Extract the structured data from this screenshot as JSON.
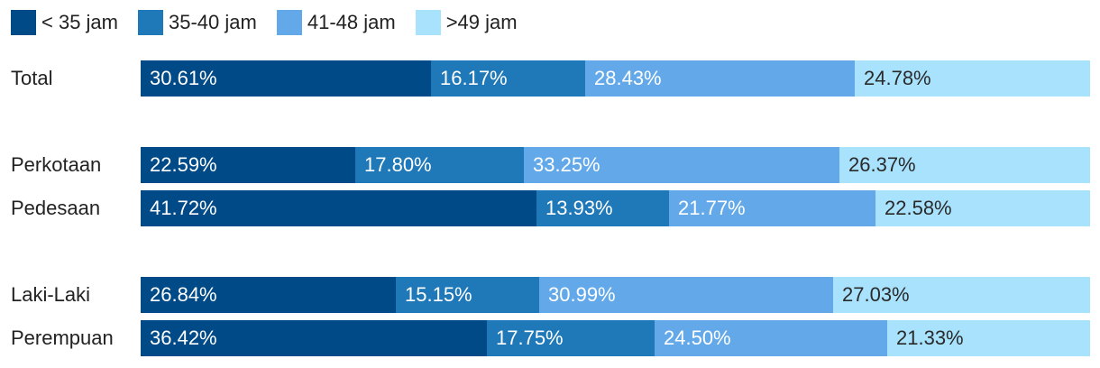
{
  "chart_data": {
    "type": "bar",
    "orientation": "horizontal",
    "stacked": true,
    "normalized_percent": true,
    "categories": [
      "Total",
      "Perkotaan",
      "Pedesaan",
      "Laki-Laki",
      "Perempuan"
    ],
    "groups": [
      [
        "Total"
      ],
      [
        "Perkotaan",
        "Pedesaan"
      ],
      [
        "Laki-Laki",
        "Perempuan"
      ]
    ],
    "series": [
      {
        "name": "< 35 jam",
        "color": "#004a87",
        "label_color": "#ffffff",
        "values": [
          30.61,
          22.59,
          41.72,
          26.84,
          36.42
        ],
        "labels": [
          "30.61%",
          "22.59%",
          "41.72%",
          "26.84%",
          "36.42%"
        ]
      },
      {
        "name": "35-40 jam",
        "color": "#1f78b8",
        "label_color": "#ffffff",
        "values": [
          16.17,
          17.8,
          13.93,
          15.15,
          17.75
        ],
        "labels": [
          "16.17%",
          "17.80%",
          "13.93%",
          "15.15%",
          "17.75%"
        ]
      },
      {
        "name": "41-48 jam",
        "color": "#63a9ea",
        "label_color": "#ffffff",
        "values": [
          28.43,
          33.25,
          21.77,
          30.99,
          24.5
        ],
        "labels": [
          "28.43%",
          "33.25%",
          "21.77%",
          "30.99%",
          "24.50%"
        ]
      },
      {
        "name": ">49 jam",
        "color": "#a8e2fd",
        "label_color": "#2a2a2a",
        "values": [
          24.78,
          26.37,
          22.58,
          27.03,
          21.33
        ],
        "labels": [
          "24.78%",
          "26.37%",
          "22.58%",
          "27.03%",
          "21.33%"
        ]
      }
    ],
    "legend": "top-left",
    "grid": false,
    "xlim": [
      0,
      100
    ]
  }
}
